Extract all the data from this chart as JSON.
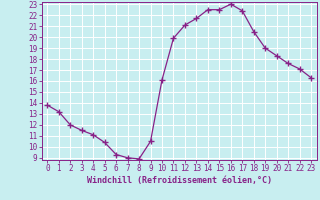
{
  "x": [
    0,
    1,
    2,
    3,
    4,
    5,
    6,
    7,
    8,
    9,
    10,
    11,
    12,
    13,
    14,
    15,
    16,
    17,
    18,
    19,
    20,
    21,
    22,
    23
  ],
  "y": [
    13.8,
    13.2,
    12.0,
    11.5,
    11.1,
    10.4,
    9.3,
    9.0,
    8.9,
    10.5,
    16.1,
    19.9,
    21.1,
    21.7,
    22.5,
    22.5,
    23.0,
    22.4,
    20.5,
    19.0,
    18.3,
    17.6,
    17.1,
    16.3
  ],
  "line_color": "#882288",
  "marker": "+",
  "marker_size": 4,
  "marker_linewidth": 1.0,
  "bg_color": "#c8eef0",
  "grid_color": "#ffffff",
  "tick_color": "#882288",
  "spine_color": "#882288",
  "xlabel": "Windchill (Refroidissement éolien,°C)",
  "ylim": [
    9,
    23
  ],
  "xlim": [
    -0.5,
    23.5
  ],
  "yticks": [
    9,
    10,
    11,
    12,
    13,
    14,
    15,
    16,
    17,
    18,
    19,
    20,
    21,
    22,
    23
  ],
  "xticks": [
    0,
    1,
    2,
    3,
    4,
    5,
    6,
    7,
    8,
    9,
    10,
    11,
    12,
    13,
    14,
    15,
    16,
    17,
    18,
    19,
    20,
    21,
    22,
    23
  ],
  "axis_fontsize": 5.5,
  "label_fontsize": 6.0,
  "linewidth": 0.9
}
